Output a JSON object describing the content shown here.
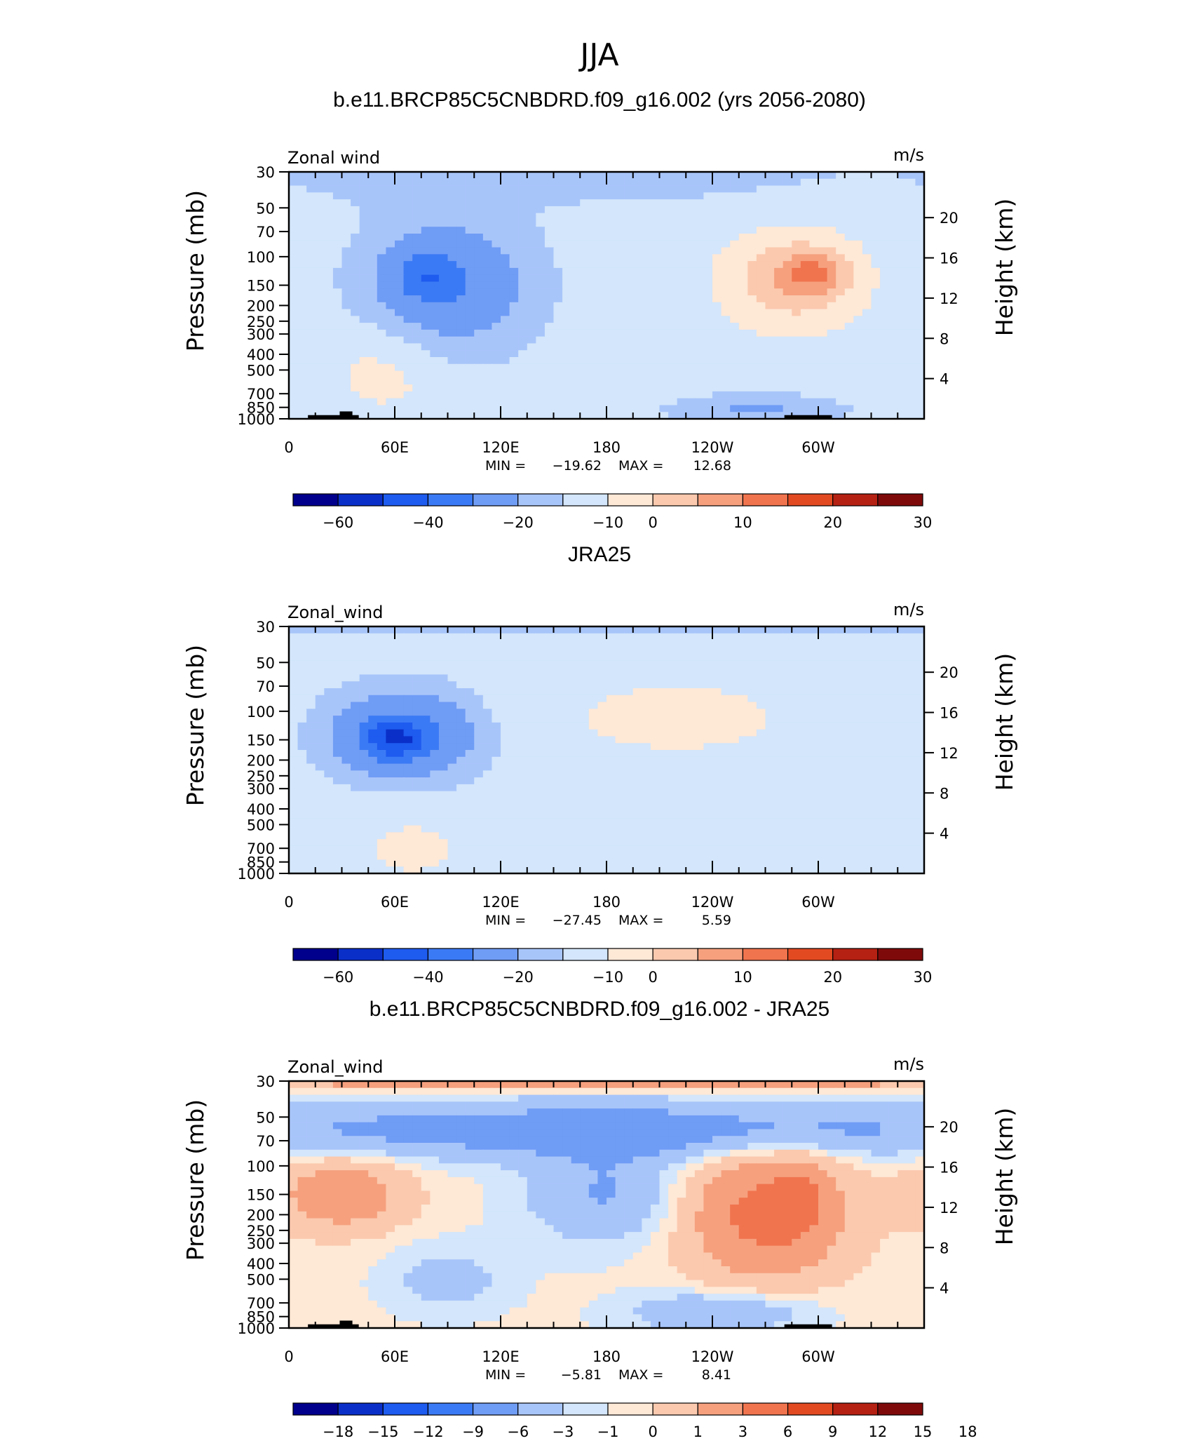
{
  "figure": {
    "title": "JJA"
  },
  "colors": {
    "scale": [
      "#00008c",
      "#0a2fc9",
      "#1e5bef",
      "#3b7af5",
      "#6f9cf5",
      "#a8c5fa",
      "#d3e6fb",
      "#fee8d6",
      "#fbc9ae",
      "#f6a07e",
      "#f0744e",
      "#e24a22",
      "#b52113",
      "#7f0a0a"
    ]
  },
  "chart_data": [
    {
      "type": "heatmap",
      "title": "b.e11.BRCP85C5CNBDRD.f09_g16.002 (yrs 2056-2080)",
      "left_label": "Zonal wind",
      "right_label": "m/s",
      "ylabel": "Pressure (mb)",
      "y2label": "Height (km)",
      "xticks": [
        "0",
        "60E",
        "120E",
        "180",
        "120W",
        "60W"
      ],
      "yticks": [
        "30",
        "50",
        "70",
        "100",
        "150",
        "200",
        "250",
        "300",
        "400",
        "500",
        "700",
        "850",
        "1000"
      ],
      "y2ticks": [
        "20",
        "16",
        "12",
        "8",
        "4"
      ],
      "stats": {
        "min_label": "MIN =",
        "min": "−19.62",
        "max_label": "MAX =",
        "max": "12.68"
      },
      "colorbar_labels": [
        "−60",
        "−40",
        "−20",
        "−10",
        "0",
        "10",
        "20",
        "30"
      ],
      "features": [
        {
          "x": 90,
          "p": 150,
          "v": -15,
          "rx": 45,
          "rp": 0.9
        },
        {
          "x": 78,
          "p": 130,
          "v": -14,
          "rx": 18,
          "rp": 0.35
        },
        {
          "x": 285,
          "p": 140,
          "v": 12,
          "rx": 40,
          "rp": 0.7
        },
        {
          "x": 298,
          "p": 125,
          "v": 10,
          "rx": 18,
          "rp": 0.3
        },
        {
          "x": 55,
          "p": 500,
          "v": 5,
          "rx": 35,
          "rp": 0.7
        },
        {
          "x": 265,
          "p": 870,
          "v": -8,
          "rx": 45,
          "rp": 0.2
        },
        {
          "x": 150,
          "p": 30,
          "v": -4,
          "rx": 200,
          "rp": 0.5
        }
      ]
    },
    {
      "type": "heatmap",
      "title": "JRA25",
      "left_label": "Zonal_wind",
      "right_label": "m/s",
      "ylabel": "Pressure (mb)",
      "y2label": "Height (km)",
      "xticks": [
        "0",
        "60E",
        "120E",
        "180",
        "120W",
        "60W"
      ],
      "yticks": [
        "30",
        "50",
        "70",
        "100",
        "150",
        "200",
        "250",
        "300",
        "400",
        "500",
        "700",
        "850",
        "1000"
      ],
      "y2ticks": [
        "20",
        "16",
        "12",
        "8",
        "4"
      ],
      "stats": {
        "min_label": "MIN =",
        "min": "−27.45",
        "max_label": "MAX =",
        "max": "5.59"
      },
      "colorbar_labels": [
        "−60",
        "−40",
        "−20",
        "−10",
        "0",
        "10",
        "20",
        "30"
      ],
      "features": [
        {
          "x": 65,
          "p": 140,
          "v": -20,
          "rx": 40,
          "rp": 0.6
        },
        {
          "x": 60,
          "p": 150,
          "v": -22,
          "rx": 18,
          "rp": 0.25
        },
        {
          "x": 220,
          "p": 110,
          "v": 4,
          "rx": 95,
          "rp": 0.8
        },
        {
          "x": 70,
          "p": 700,
          "v": 4,
          "rx": 35,
          "rp": 0.6
        },
        {
          "x": 180,
          "p": 30,
          "v": -8,
          "rx": 250,
          "rp": 0.12
        }
      ]
    },
    {
      "type": "heatmap",
      "title": "b.e11.BRCP85C5CNBDRD.f09_g16.002 - JRA25",
      "left_label": "Zonal_wind",
      "right_label": "m/s",
      "ylabel": "Pressure (mb)",
      "y2label": "Height (km)",
      "xticks": [
        "0",
        "60E",
        "120E",
        "180",
        "120W",
        "60W"
      ],
      "yticks": [
        "30",
        "50",
        "70",
        "100",
        "150",
        "200",
        "250",
        "300",
        "400",
        "500",
        "700",
        "850",
        "1000"
      ],
      "y2ticks": [
        "20",
        "16",
        "12",
        "8",
        "4"
      ],
      "stats": {
        "min_label": "MIN =",
        "min": "−5.81",
        "max_label": "MAX =",
        "max": "8.41"
      },
      "colorbar_labels": [
        "−18",
        "−15",
        "−12",
        "−9",
        "−6",
        "−3",
        "−1",
        "0",
        "1",
        "3",
        "6",
        "9",
        "12",
        "15",
        "18"
      ],
      "features": [
        {
          "x": 180,
          "p": 60,
          "v": -5,
          "rx": 260,
          "rp": 0.4
        },
        {
          "x": 180,
          "p": 30,
          "v": 5,
          "rx": 260,
          "rp": 0.12
        },
        {
          "x": 270,
          "p": 200,
          "v": 7,
          "rx": 45,
          "rp": 0.9
        },
        {
          "x": 290,
          "p": 150,
          "v": 3,
          "rx": 15,
          "rp": 0.5
        },
        {
          "x": 30,
          "p": 150,
          "v": 5,
          "rx": 35,
          "rp": 0.5
        },
        {
          "x": 180,
          "p": 150,
          "v": -3.5,
          "rx": 45,
          "rp": 0.7
        },
        {
          "x": 90,
          "p": 500,
          "v": -2,
          "rx": 35,
          "rp": 0.5
        },
        {
          "x": 245,
          "p": 800,
          "v": -3.5,
          "rx": 50,
          "rp": 0.3
        }
      ]
    }
  ]
}
